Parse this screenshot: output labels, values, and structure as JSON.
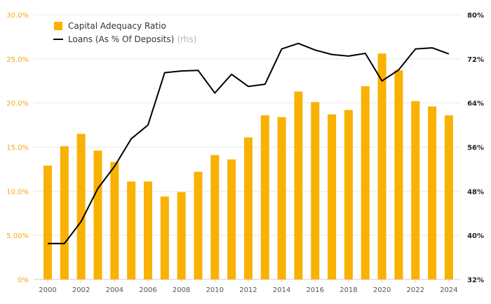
{
  "chart_data": {
    "type": "bar+line",
    "colors": {
      "bar": "#f9b103",
      "line": "#000000",
      "left_axis_text": "#f3a712",
      "grid": "#e8e8e8"
    },
    "categories": [
      "2000",
      "2001",
      "2002",
      "2003",
      "2004",
      "2005",
      "2006",
      "2007",
      "2008",
      "2009",
      "2010",
      "2011",
      "2012",
      "2013",
      "2014",
      "2015",
      "2016",
      "2017",
      "2018",
      "2019",
      "2020",
      "2021",
      "2022",
      "2023",
      "2024"
    ],
    "x_tick_labels": [
      "2000",
      "2002",
      "2004",
      "2006",
      "2008",
      "2010",
      "2012",
      "2014",
      "2016",
      "2018",
      "2020",
      "2022",
      "2024"
    ],
    "series": [
      {
        "name": "Capital Adequacy Ratio",
        "type": "bar",
        "axis": "left",
        "values": [
          12.9,
          15.1,
          16.5,
          14.6,
          13.3,
          11.1,
          11.1,
          9.4,
          9.9,
          12.2,
          14.1,
          13.6,
          16.1,
          18.6,
          18.4,
          21.3,
          20.1,
          18.7,
          19.2,
          21.9,
          25.6,
          23.7,
          20.2,
          19.6,
          18.6
        ]
      },
      {
        "name": "Loans (As % Of Deposits)",
        "name_suffix": "(rhs)",
        "type": "line",
        "axis": "right",
        "values": [
          38.5,
          38.5,
          42.5,
          48.5,
          52.5,
          57.5,
          60.0,
          69.5,
          69.8,
          69.9,
          65.8,
          69.2,
          67.0,
          67.4,
          73.8,
          74.8,
          73.6,
          72.8,
          72.5,
          73.0,
          68.0,
          70.0,
          73.8,
          74.0,
          72.9
        ]
      }
    ],
    "y_left": {
      "min": 0,
      "max": 30,
      "ticks": [
        0,
        5,
        10,
        15,
        20,
        25,
        30
      ],
      "tick_labels": [
        "0%",
        "5.00%",
        "10.0%",
        "15.0%",
        "20.0%",
        "25.0%",
        "30.0%"
      ]
    },
    "y_right": {
      "min": 32,
      "max": 80,
      "ticks": [
        32,
        40,
        48,
        56,
        64,
        72,
        80
      ],
      "tick_labels": [
        "32%",
        "40%",
        "48%",
        "56%",
        "64%",
        "72%",
        "80%"
      ]
    },
    "legend_position": "top-left",
    "grid": true
  }
}
